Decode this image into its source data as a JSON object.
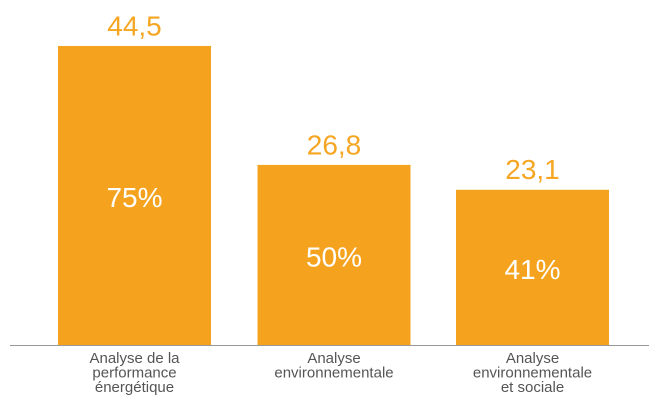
{
  "chart_data": {
    "type": "bar",
    "categories": [
      [
        "Analyse de la",
        "performance",
        "énergétique"
      ],
      [
        "Analyse",
        "environnementale"
      ],
      [
        "Analyse",
        "environnementale",
        "et sociale"
      ]
    ],
    "values": [
      44.5,
      26.8,
      23.1
    ],
    "value_labels": [
      "44,5",
      "26,8",
      "23,1"
    ],
    "inner_values": [
      75,
      50,
      41
    ],
    "inner_value_labels": [
      "75%",
      "50%",
      "41%"
    ],
    "color": "#f5a31e",
    "ylim": [
      0,
      50
    ]
  }
}
